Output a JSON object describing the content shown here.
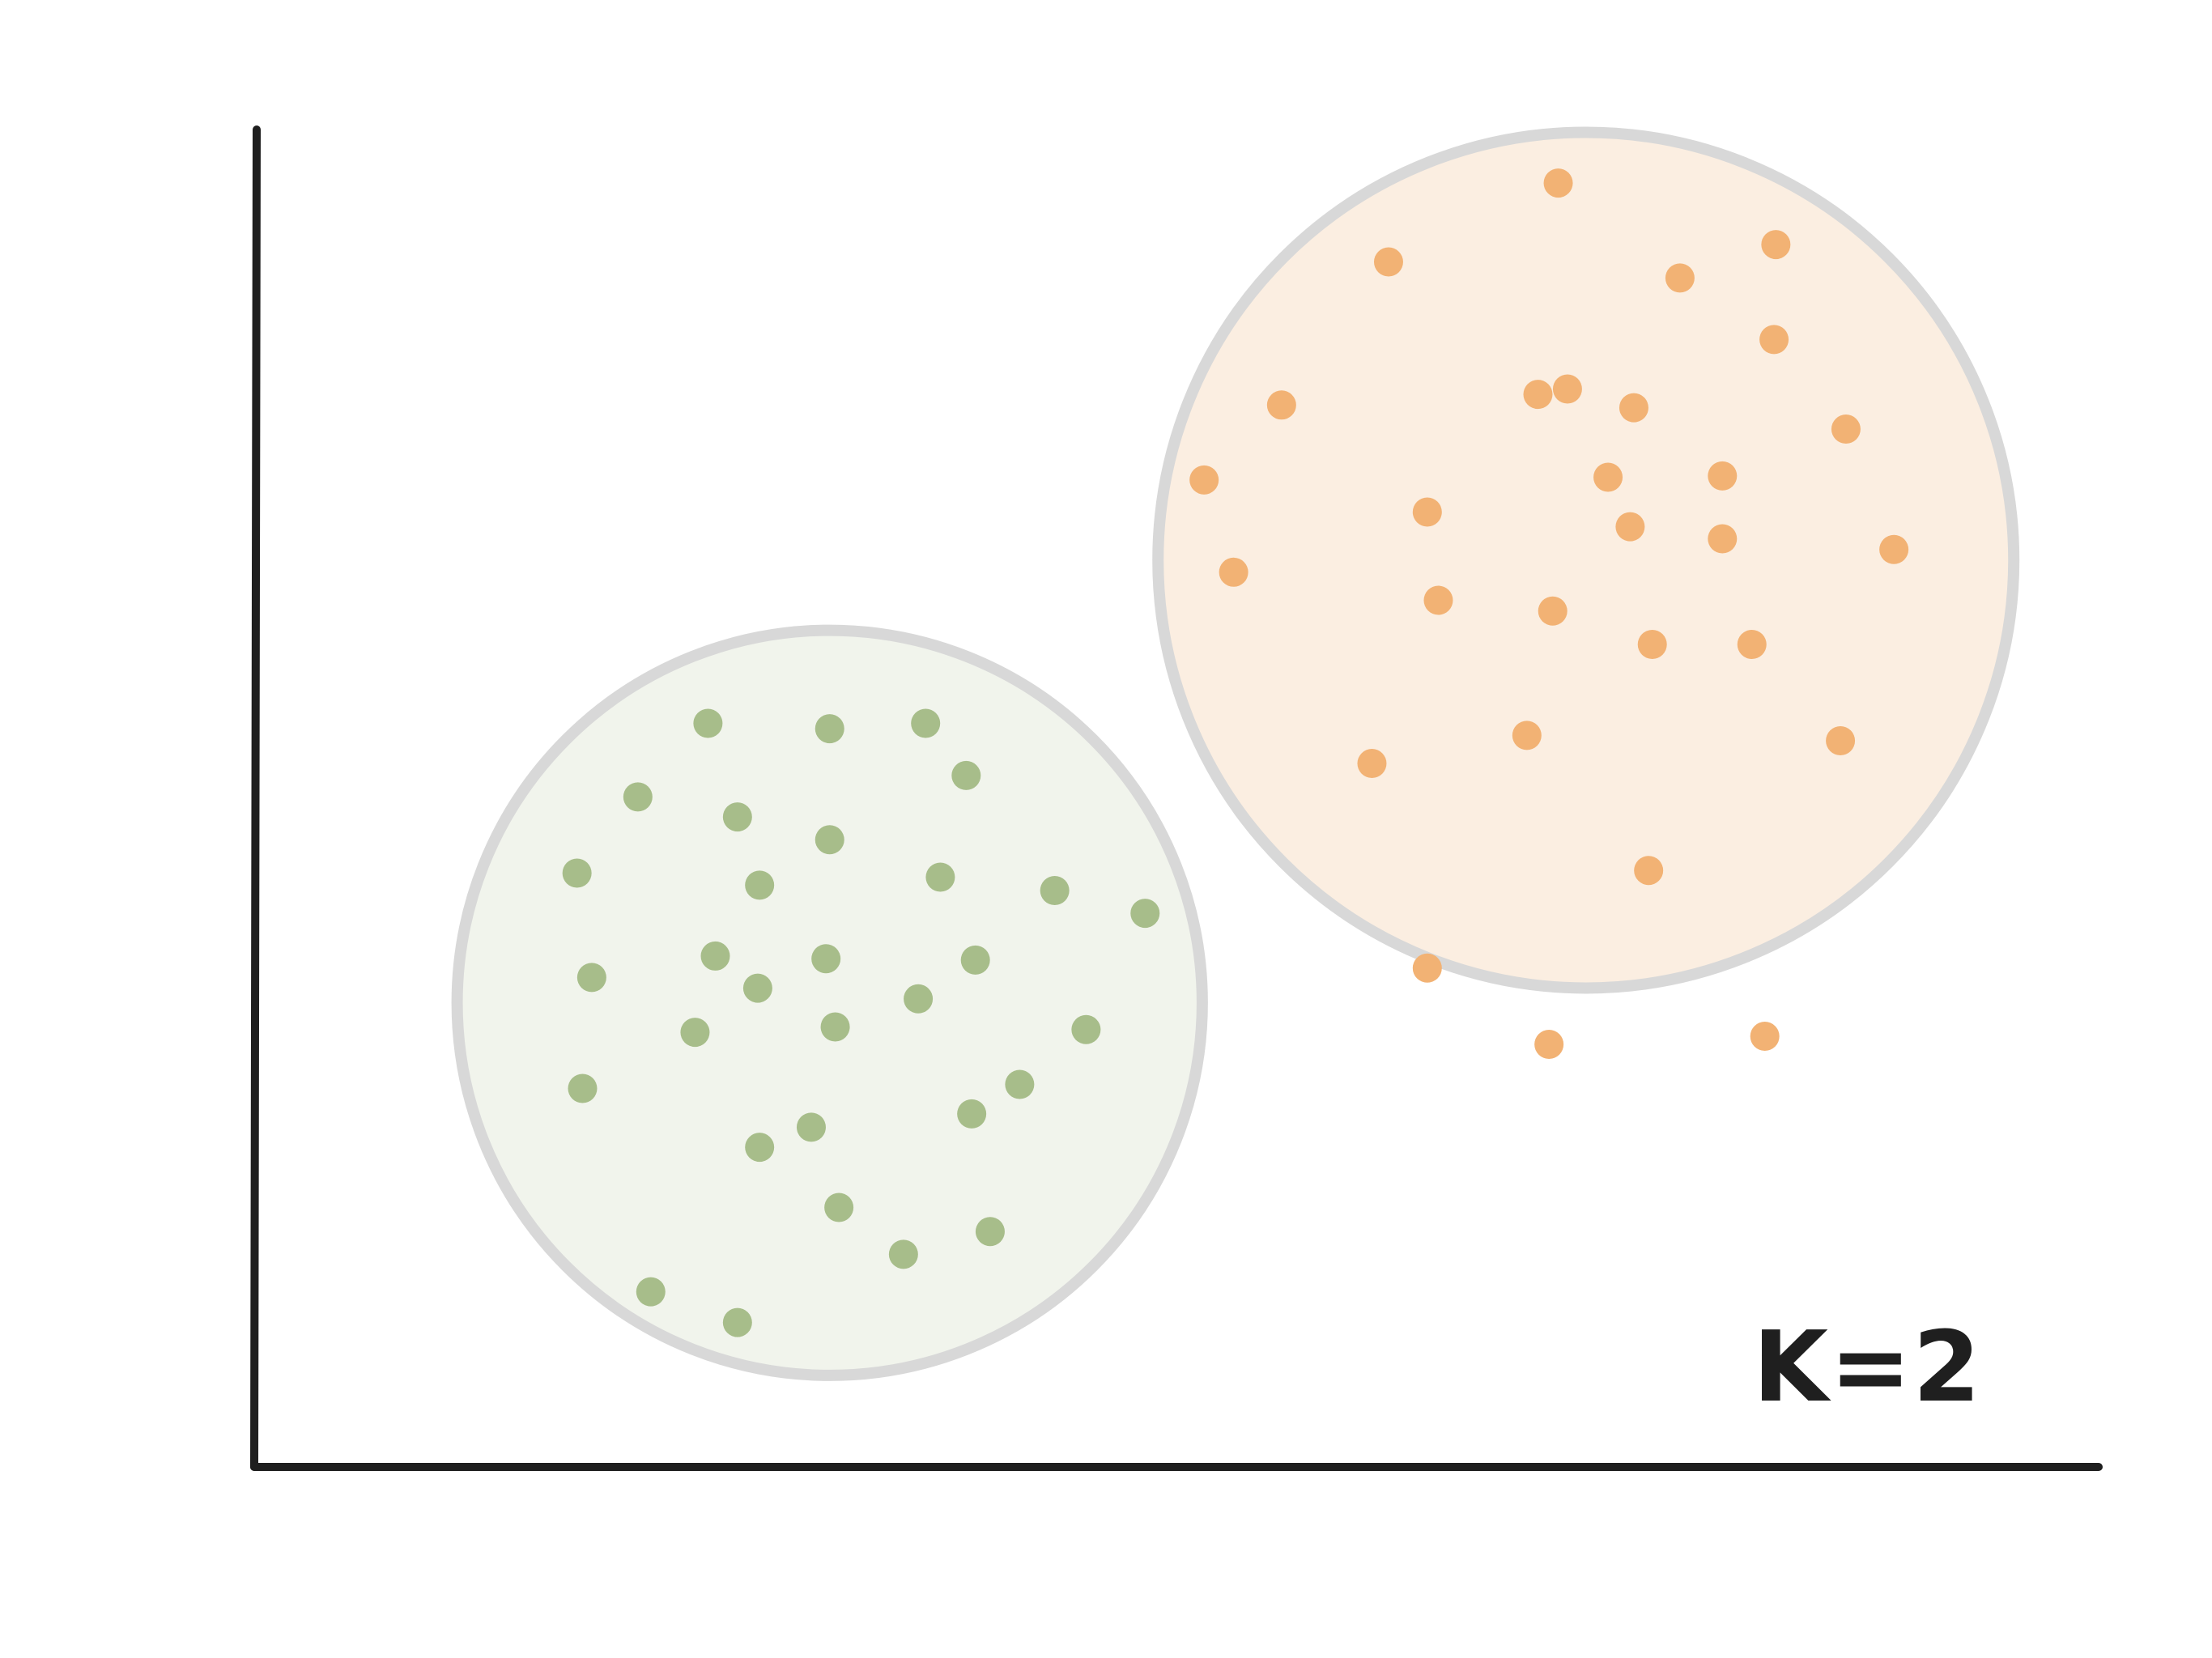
{
  "chart_data": {
    "type": "scatter",
    "title": "",
    "xlabel": "",
    "ylabel": "",
    "xlim": [
      0,
      100
    ],
    "ylim": [
      0,
      100
    ],
    "grid": false,
    "legend": "none",
    "annotation": "K=2",
    "boundary_color": "#d8d8d8",
    "axis_color": "#1f1f1f",
    "clusters": [
      {
        "marker_color": "#a7bd8a",
        "fill_color": "#f1f4ec",
        "center": [
          31.2,
          34.7
        ],
        "radius": 20.2,
        "points": [
          [
            24.6,
            55.6
          ],
          [
            31.2,
            55.2
          ],
          [
            36.4,
            55.6
          ],
          [
            38.6,
            51.7
          ],
          [
            20.8,
            50.1
          ],
          [
            26.2,
            48.6
          ],
          [
            31.2,
            46.9
          ],
          [
            17.5,
            44.4
          ],
          [
            27.4,
            43.5
          ],
          [
            37.2,
            44.1
          ],
          [
            43.4,
            43.1
          ],
          [
            48.3,
            41.4
          ],
          [
            25.0,
            38.2
          ],
          [
            31.0,
            38.0
          ],
          [
            39.1,
            37.9
          ],
          [
            18.3,
            36.6
          ],
          [
            27.3,
            35.8
          ],
          [
            36.0,
            35.0
          ],
          [
            23.9,
            32.5
          ],
          [
            31.5,
            32.9
          ],
          [
            45.1,
            32.7
          ],
          [
            17.8,
            28.3
          ],
          [
            41.5,
            28.6
          ],
          [
            30.2,
            25.4
          ],
          [
            27.4,
            23.9
          ],
          [
            38.9,
            26.4
          ],
          [
            31.7,
            19.4
          ],
          [
            35.2,
            15.9
          ],
          [
            39.9,
            17.6
          ],
          [
            21.5,
            13.1
          ],
          [
            26.2,
            10.8
          ]
        ]
      },
      {
        "marker_color": "#f2b274",
        "fill_color": "#fbeee1",
        "center": [
          72.2,
          67.8
        ],
        "radius": 23.2,
        "points": [
          [
            70.7,
            96.0
          ],
          [
            61.5,
            90.1
          ],
          [
            77.3,
            88.9
          ],
          [
            82.5,
            91.4
          ],
          [
            82.4,
            84.3
          ],
          [
            55.7,
            79.4
          ],
          [
            69.6,
            80.2
          ],
          [
            71.2,
            80.6
          ],
          [
            74.8,
            79.2
          ],
          [
            86.3,
            77.6
          ],
          [
            51.5,
            73.8
          ],
          [
            73.4,
            74.0
          ],
          [
            79.6,
            74.1
          ],
          [
            63.6,
            71.4
          ],
          [
            74.6,
            70.3
          ],
          [
            79.6,
            69.4
          ],
          [
            88.9,
            68.6
          ],
          [
            53.1,
            66.9
          ],
          [
            64.2,
            64.8
          ],
          [
            70.4,
            64.0
          ],
          [
            75.8,
            61.5
          ],
          [
            81.2,
            61.5
          ],
          [
            69.0,
            54.7
          ],
          [
            60.6,
            52.6
          ],
          [
            86.0,
            54.3
          ],
          [
            75.6,
            44.6
          ],
          [
            63.6,
            37.3
          ],
          [
            70.2,
            31.6
          ],
          [
            81.9,
            32.2
          ]
        ]
      }
    ]
  }
}
